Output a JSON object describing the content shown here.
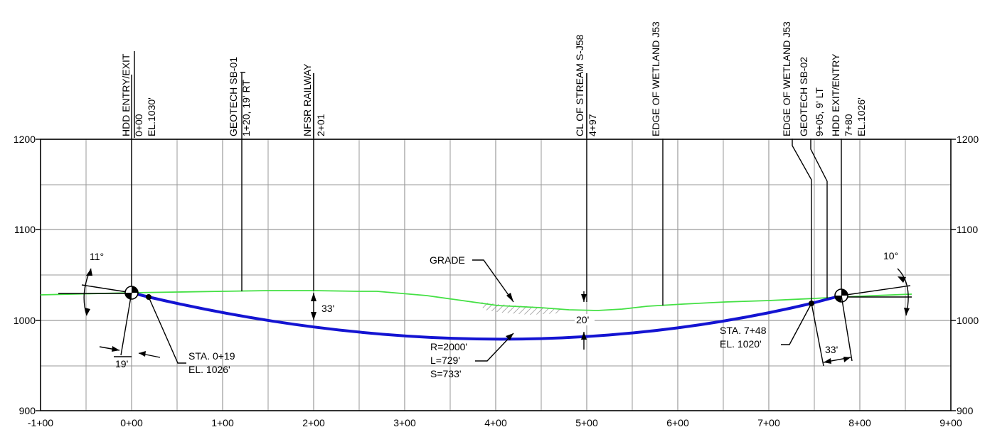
{
  "drawing": {
    "station_axis_labels": [
      "-1+00",
      "0+00",
      "1+00",
      "2+00",
      "3+00",
      "4+00",
      "5+00",
      "6+00",
      "7+00",
      "8+00",
      "9+00"
    ],
    "elevation_axis_labels_left": [
      "1200",
      "1100",
      "1000",
      "900"
    ],
    "elevation_axis_labels_right": [
      "1200",
      "1100",
      "1000",
      "900"
    ],
    "callouts": [
      {
        "id": "hdd-entry",
        "lines": [
          "HDD ENTRY/EXIT",
          "0+00",
          "EL.1030'"
        ]
      },
      {
        "id": "geotech-sb01",
        "lines": [
          "GEOTECH SB-01",
          "1+20, 19' RT"
        ]
      },
      {
        "id": "nfsr-railway",
        "lines": [
          "NFSR RAILWAY",
          "2+01"
        ]
      },
      {
        "id": "stream-cl",
        "lines": [
          "CL OF STREAM S-J58",
          "4+97"
        ]
      },
      {
        "id": "wetland-edge-1",
        "lines": [
          "EDGE OF WETLAND J53"
        ]
      },
      {
        "id": "wetland-edge-2",
        "lines": [
          "EDGE OF WETLAND J53"
        ]
      },
      {
        "id": "geotech-sb02",
        "lines": [
          "GEOTECH SB-02",
          "9+05, 9' LT"
        ]
      },
      {
        "id": "hdd-exit",
        "lines": [
          "HDD EXIT/ENTRY",
          "7+80",
          "EL.1026'"
        ]
      }
    ],
    "annotations": {
      "entry_angle": "11°",
      "exit_angle": "10°",
      "grade_label": "GRADE",
      "depth_rail": "33'",
      "depth_stream": "20'",
      "entry_offset": "19'",
      "exit_offset": "33'",
      "entry_tangent": [
        "STA. 0+19",
        "EL. 1026'"
      ],
      "exit_tangent": [
        "STA. 7+48",
        "EL. 1020'"
      ],
      "curve": [
        "R=2000'",
        "L=729'",
        "S=733'"
      ]
    },
    "colors": {
      "bore_path": "#1414d2",
      "ground": "#44e044",
      "grid": "#9a9a9a",
      "hatch": "#888888"
    }
  }
}
